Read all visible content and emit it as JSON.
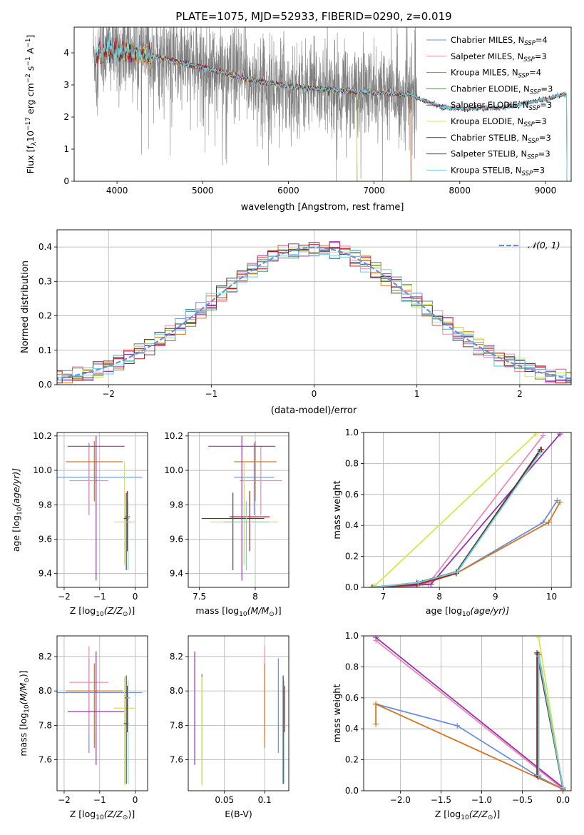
{
  "title": "PLATE=1075, MJD=52933, FIBERID=0290, z=0.019",
  "colors": {
    "chabrier_miles": "#6a8fdb",
    "salpeter_miles": "#e98ab6",
    "kroupa_miles": "#d47420",
    "chabrier_elodie": "#5b8a5b",
    "salpeter_elodie": "#9b2fae",
    "kroupa_elodie": "#d4e84a",
    "chabrier_stelib": "#444444",
    "salpeter_stelib": "#b01c1c",
    "kroupa_stelib": "#6ad6e0",
    "data": "#808080",
    "gaussian": "#6a8fdb",
    "grid": "#b0b0b0"
  },
  "chart_data": [
    {
      "type": "line",
      "panel": "spectrum",
      "title": "PLATE=1075, MJD=52933, FIBERID=0290, z=0.019",
      "xlabel": "wavelength [Angstrom, rest frame]",
      "ylabel_parts": [
        "Flux [f",
        "λ",
        "10",
        "−17",
        " erg cm",
        "−2",
        " s",
        "−1",
        " A",
        "−1",
        "]"
      ],
      "xlim": [
        3500,
        9300
      ],
      "ylim": [
        0,
        4.8
      ],
      "xticks": [
        4000,
        5000,
        6000,
        7000,
        8000,
        9000
      ],
      "yticks": [
        0,
        1,
        2,
        3,
        4
      ],
      "grid": false,
      "legend_position": "top-right",
      "legend": [
        {
          "label": "Chabrier MILES, N",
          "sub": "SSP",
          "tail": "=4"
        },
        {
          "label": "Salpeter MILES, N",
          "sub": "SSP",
          "tail": "=3"
        },
        {
          "label": "Kroupa MILES, N",
          "sub": "SSP",
          "tail": "=4"
        },
        {
          "label": "Chabrier ELODIE, N",
          "sub": "SSP",
          "tail": "=3"
        },
        {
          "label": "Salpeter ELODIE, N",
          "sub": "SSP",
          "tail": "=3"
        },
        {
          "label": "Kroupa ELODIE, N",
          "sub": "SSP",
          "tail": "=3"
        },
        {
          "label": "Chabrier STELIB, N",
          "sub": "SSP",
          "tail": "=3"
        },
        {
          "label": "Salpeter STELIB, N",
          "sub": "SSP",
          "tail": "=3"
        },
        {
          "label": "Kroupa STELIB, N",
          "sub": "SSP",
          "tail": "=3"
        }
      ],
      "continuum": {
        "x": [
          3750,
          3900,
          4000,
          4200,
          4500,
          5000,
          5500,
          6000,
          6500,
          7000,
          7400,
          7600,
          7800,
          8000,
          8500,
          9000,
          9200
        ],
        "y": [
          3.9,
          4.1,
          4.05,
          4.0,
          3.85,
          3.55,
          3.2,
          2.95,
          2.85,
          2.75,
          2.7,
          2.5,
          2.3,
          2.25,
          2.3,
          2.55,
          2.7
        ]
      },
      "data_noise": {
        "x_range": [
          3720,
          7500
        ],
        "noise_amplitude_flux": 1.6
      },
      "model_ranges": {
        "miles": [
          3750,
          7430
        ],
        "elodie": [
          3900,
          6800
        ],
        "stelib": [
          3750,
          9250
        ]
      }
    },
    {
      "type": "line",
      "panel": "residual-histogram",
      "xlabel": "(data-model)/error",
      "ylabel": "Normed distribution",
      "xlim": [
        -2.5,
        2.5
      ],
      "ylim": [
        0,
        0.45
      ],
      "xticks": [
        -2,
        -1,
        0,
        1,
        2
      ],
      "xtick_labels": [
        "−2",
        "−1",
        "0",
        "1",
        "2"
      ],
      "yticks": [
        0.0,
        0.1,
        0.2,
        0.3,
        0.4
      ],
      "grid": true,
      "legend_position": "top-right",
      "gaussian_label": "𝒩(0, 1)",
      "bin_width": 0.1
    },
    {
      "type": "scatter",
      "panel": "age-vs-Z",
      "xlabel_parts": [
        "Z [log",
        "10",
        "(Z/Z",
        "⊙",
        ")]"
      ],
      "ylabel_parts": [
        "age  [log",
        "10",
        "(age/yr)]"
      ],
      "xlim": [
        -2.2,
        0.35
      ],
      "ylim": [
        9.32,
        10.22
      ],
      "xticks": [
        -2,
        -1,
        0
      ],
      "xtick_labels": [
        "−2",
        "−1",
        "0"
      ],
      "yticks": [
        9.4,
        9.6,
        9.8,
        10.0,
        10.2
      ],
      "grid": true,
      "points": [
        {
          "model": "chabrier_miles",
          "x": -1.3,
          "y": 9.96,
          "xerr": 1.5,
          "yerr": [
            0.22,
            0.2
          ]
        },
        {
          "model": "salpeter_miles",
          "x": -1.3,
          "y": 9.94,
          "xerr": 0.55,
          "yerr": [
            0.2,
            0.2
          ]
        },
        {
          "model": "kroupa_miles",
          "x": -1.15,
          "y": 10.05,
          "xerr": 0.8,
          "yerr": [
            0.23,
            0.12
          ]
        },
        {
          "model": "salpeter_elodie",
          "x": -1.1,
          "y": 10.14,
          "xerr": 0.8,
          "yerr": [
            0.78,
            0.06
          ]
        },
        {
          "model": "kroupa_elodie",
          "x": -0.3,
          "y": 9.7,
          "xerr": 0.3,
          "yerr": [
            0.25,
            0.35
          ]
        },
        {
          "model": "chabrier_stelib",
          "x": -0.25,
          "y": 9.72,
          "xerr": 0.07,
          "yerr": [
            0.3,
            0.15
          ]
        },
        {
          "model": "salpeter_stelib",
          "x": -0.22,
          "y": 9.73,
          "xerr": 0.07,
          "yerr": [
            0.2,
            0.15
          ]
        },
        {
          "model": "kroupa_stelib",
          "x": -0.2,
          "y": 9.7,
          "xerr": 0.05,
          "yerr": [
            0.28,
            0.12
          ]
        }
      ]
    },
    {
      "type": "scatter",
      "panel": "age-vs-mass",
      "xlabel_parts": [
        "mass [log",
        "10",
        "(M/M",
        "⊙",
        ")]"
      ],
      "xlim": [
        7.4,
        8.3
      ],
      "ylim": [
        9.32,
        10.22
      ],
      "xticks": [
        7.5,
        8.0
      ],
      "yticks": [
        9.4,
        9.6,
        9.8,
        10.0,
        10.2
      ],
      "grid": true,
      "points": [
        {
          "model": "chabrier_miles",
          "x": 7.99,
          "y": 9.96,
          "xerr": 0.18,
          "yerr": [
            0.22,
            0.2
          ]
        },
        {
          "model": "salpeter_miles",
          "x": 8.05,
          "y": 9.94,
          "xerr": 0.19,
          "yerr": [
            0.2,
            0.2
          ]
        },
        {
          "model": "kroupa_miles",
          "x": 8.0,
          "y": 10.05,
          "xerr": 0.19,
          "yerr": [
            0.23,
            0.12
          ]
        },
        {
          "model": "salpeter_elodie",
          "x": 7.88,
          "y": 10.14,
          "xerr": 0.3,
          "yerr": [
            0.78,
            0.06
          ]
        },
        {
          "model": "kroupa_elodie",
          "x": 7.9,
          "y": 9.7,
          "xerr": 0.3,
          "yerr": [
            0.25,
            0.35
          ]
        },
        {
          "model": "chabrier_stelib",
          "x": 7.8,
          "y": 9.72,
          "xerr": 0.28,
          "yerr": [
            0.3,
            0.15
          ]
        },
        {
          "model": "salpeter_stelib",
          "x": 7.95,
          "y": 9.73,
          "xerr": 0.18,
          "yerr": [
            0.2,
            0.15
          ]
        },
        {
          "model": "kroupa_stelib",
          "x": 7.92,
          "y": 9.7,
          "xerr": 0.2,
          "yerr": [
            0.28,
            0.12
          ]
        }
      ]
    },
    {
      "type": "line",
      "panel": "mass-weight-vs-age",
      "xlabel_parts": [
        "age  [log",
        "10",
        "(age/yr)]"
      ],
      "ylabel": "mass weight",
      "xlim": [
        6.65,
        10.35
      ],
      "ylim": [
        0,
        1.0
      ],
      "xticks": [
        7,
        8,
        9,
        10
      ],
      "yticks": [
        0.0,
        0.2,
        0.4,
        0.6,
        0.8,
        1.0
      ],
      "grid": true,
      "series": [
        {
          "model": "chabrier_miles",
          "x": [
            6.8,
            7.6,
            8.3,
            9.85,
            10.1
          ],
          "y": [
            0.0,
            0.02,
            0.09,
            0.42,
            0.56
          ]
        },
        {
          "model": "kroupa_miles",
          "x": [
            6.8,
            7.6,
            8.3,
            9.95,
            10.15
          ],
          "y": [
            0.0,
            0.01,
            0.09,
            0.42,
            0.55
          ]
        },
        {
          "model": "salpeter_miles",
          "x": [
            6.85,
            7.8,
            9.85
          ],
          "y": [
            0.0,
            0.02,
            0.98
          ]
        },
        {
          "model": "chabrier_elodie",
          "x": [
            6.85,
            7.7,
            8.3,
            9.8
          ],
          "y": [
            0.0,
            0.03,
            0.09,
            0.88
          ]
        },
        {
          "model": "salpeter_elodie",
          "x": [
            6.8,
            7.85,
            10.15
          ],
          "y": [
            0.0,
            0.02,
            0.99
          ]
        },
        {
          "model": "kroupa_elodie",
          "x": [
            6.85,
            9.72
          ],
          "y": [
            0.01,
            0.99
          ]
        },
        {
          "model": "chabrier_stelib",
          "x": [
            6.8,
            7.6,
            8.3,
            9.8
          ],
          "y": [
            0.0,
            0.03,
            0.1,
            0.89
          ]
        },
        {
          "model": "salpeter_stelib",
          "x": [
            6.8,
            7.6,
            8.3,
            9.82
          ],
          "y": [
            0.0,
            0.02,
            0.09,
            0.89
          ]
        },
        {
          "model": "kroupa_stelib",
          "x": [
            6.82,
            7.62,
            8.32,
            9.8
          ],
          "y": [
            0.0,
            0.03,
            0.1,
            0.87
          ]
        }
      ]
    },
    {
      "type": "scatter",
      "panel": "mass-vs-Z",
      "xlabel_parts": [
        "Z [log",
        "10",
        "(Z/Z",
        "⊙",
        ")]"
      ],
      "ylabel_parts": [
        "mass [log",
        "10",
        "(M/M",
        "⊙",
        ")]"
      ],
      "xlim": [
        -2.2,
        0.35
      ],
      "ylim": [
        7.42,
        8.32
      ],
      "xticks": [
        -2,
        -1,
        0
      ],
      "xtick_labels": [
        "−2",
        "−1",
        "0"
      ],
      "yticks": [
        7.6,
        7.8,
        8.0,
        8.2
      ],
      "grid": true,
      "points": [
        {
          "model": "chabrier_miles",
          "x": -1.3,
          "y": 7.99,
          "xerr": 1.5,
          "yerr": [
            0.35,
            0.2
          ]
        },
        {
          "model": "salpeter_miles",
          "x": -1.3,
          "y": 8.05,
          "xerr": 0.55,
          "yerr": [
            0.3,
            0.21
          ]
        },
        {
          "model": "kroupa_miles",
          "x": -1.15,
          "y": 8.0,
          "xerr": 0.8,
          "yerr": [
            0.33,
            0.16
          ]
        },
        {
          "model": "salpeter_elodie",
          "x": -1.1,
          "y": 7.88,
          "xerr": 0.8,
          "yerr": [
            0.31,
            0.35
          ]
        },
        {
          "model": "kroupa_elodie",
          "x": -0.3,
          "y": 7.9,
          "xerr": 0.3,
          "yerr": [
            0.45,
            0.18
          ]
        },
        {
          "model": "chabrier_stelib",
          "x": -0.25,
          "y": 7.81,
          "xerr": 0.07,
          "yerr": [
            0.35,
            0.28
          ]
        },
        {
          "model": "salpeter_stelib",
          "x": -0.22,
          "y": 7.96,
          "xerr": 0.07,
          "yerr": [
            0.2,
            0.07
          ]
        },
        {
          "model": "kroupa_stelib",
          "x": -0.2,
          "y": 7.96,
          "xerr": 0.05,
          "yerr": [
            0.5,
            0.1
          ]
        }
      ]
    },
    {
      "type": "scatter",
      "panel": "mass-vs-EBV",
      "xlabel": "E(B-V)",
      "xlim": [
        0.005,
        0.13
      ],
      "ylim": [
        7.42,
        8.32
      ],
      "xticks": [
        0.05,
        0.1
      ],
      "yticks": [
        7.6,
        7.8,
        8.0,
        8.2
      ],
      "grid": true,
      "points": [
        {
          "model": "salpeter_elodie",
          "x": 0.013,
          "y": 7.88,
          "yerr": [
            0.31,
            0.35
          ]
        },
        {
          "model": "chabrier_elodie",
          "x": 0.022,
          "y": 7.85,
          "yerr": [
            0.39,
            0.25
          ]
        },
        {
          "model": "kroupa_elodie",
          "x": 0.022,
          "y": 7.9,
          "yerr": [
            0.45,
            0.18
          ]
        },
        {
          "model": "salpeter_miles",
          "x": 0.1,
          "y": 8.05,
          "yerr": [
            0.3,
            0.21
          ]
        },
        {
          "model": "kroupa_miles",
          "x": 0.1,
          "y": 8.0,
          "yerr": [
            0.33,
            0.16
          ]
        },
        {
          "model": "chabrier_miles",
          "x": 0.117,
          "y": 7.99,
          "yerr": [
            0.35,
            0.2
          ]
        },
        {
          "model": "salpeter_stelib",
          "x": 0.125,
          "y": 7.96,
          "yerr": [
            0.2,
            0.07
          ]
        },
        {
          "model": "kroupa_stelib",
          "x": 0.124,
          "y": 7.96,
          "yerr": [
            0.5,
            0.1
          ]
        },
        {
          "model": "chabrier_stelib",
          "x": 0.123,
          "y": 7.81,
          "yerr": [
            0.35,
            0.28
          ]
        }
      ]
    },
    {
      "type": "line",
      "panel": "mass-weight-vs-Z",
      "xlabel_parts": [
        "Z [log",
        "10",
        "(Z/Z",
        "⊙",
        ")]"
      ],
      "ylabel": "mass weight",
      "xlim": [
        -2.45,
        0.1
      ],
      "ylim": [
        0,
        1.0
      ],
      "xticks": [
        -2.0,
        -1.5,
        -1.0,
        -0.5,
        0.0
      ],
      "xtick_labels": [
        "−2.0",
        "−1.5",
        "−1.0",
        "−0.5",
        "0.0"
      ],
      "yticks": [
        0.0,
        0.2,
        0.4,
        0.6,
        0.8,
        1.0
      ],
      "grid": true,
      "series": [
        {
          "model": "chabrier_miles",
          "x": [
            -2.3,
            -1.3,
            -0.3,
            0.0
          ],
          "y": [
            0.56,
            0.42,
            0.09,
            0.01
          ]
        },
        {
          "model": "kroupa_miles",
          "x": [
            -2.3,
            -2.3,
            0.0,
            0.0
          ],
          "y": [
            0.43,
            0.56,
            0.01,
            0.0
          ]
        },
        {
          "model": "salpeter_miles",
          "x": [
            -2.3,
            0.0
          ],
          "y": [
            0.97,
            0.01
          ]
        },
        {
          "model": "salpeter_elodie",
          "x": [
            -2.3,
            0.0
          ],
          "y": [
            0.99,
            0.02
          ]
        },
        {
          "model": "kroupa_elodie",
          "x": [
            -0.3,
            0.0
          ],
          "y": [
            0.99,
            0.01
          ]
        },
        {
          "model": "chabrier_elodie",
          "x": [
            -0.3,
            -0.3,
            0.0
          ],
          "y": [
            0.1,
            0.88,
            0.02
          ]
        },
        {
          "model": "chabrier_stelib",
          "x": [
            -0.32,
            -0.32,
            0.0
          ],
          "y": [
            0.1,
            0.89,
            0.01
          ]
        },
        {
          "model": "salpeter_stelib",
          "x": [
            -0.31,
            -0.31,
            0.0
          ],
          "y": [
            0.09,
            0.88,
            0.01
          ]
        },
        {
          "model": "kroupa_stelib",
          "x": [
            -0.3,
            -0.3,
            0.0
          ],
          "y": [
            0.1,
            0.87,
            0.02
          ]
        }
      ]
    }
  ]
}
